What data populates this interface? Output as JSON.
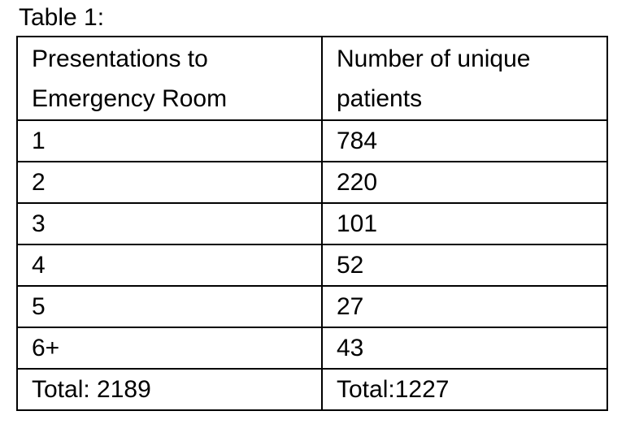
{
  "caption": "Table 1:",
  "table": {
    "headers": [
      [
        "Presentations to",
        "Emergency Room"
      ],
      [
        "Number of unique",
        "patients"
      ]
    ],
    "rows": [
      [
        "1",
        "784"
      ],
      [
        "2",
        "220"
      ],
      [
        "3",
        "101"
      ],
      [
        "4",
        "52"
      ],
      [
        "5",
        "27"
      ],
      [
        "6+",
        "43"
      ],
      [
        "Total: 2189",
        "Total:1227"
      ]
    ]
  }
}
